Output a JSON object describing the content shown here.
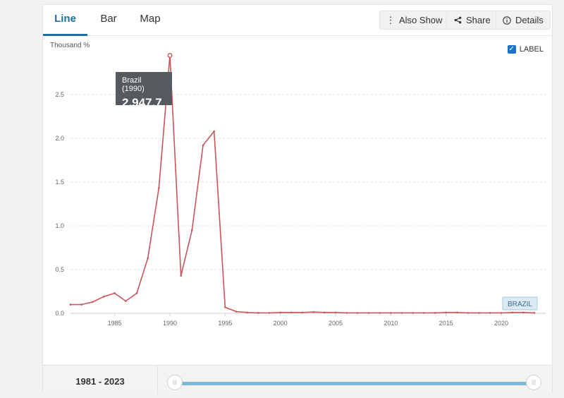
{
  "tabs": [
    "Line",
    "Bar",
    "Map"
  ],
  "buttons": {
    "also_show": "Also Show",
    "share": "Share",
    "details": "Details"
  },
  "label_toggle": {
    "text": "LABEL",
    "checked": true
  },
  "tooltip": {
    "title": "Brazil (1990)",
    "value": "2,947.7"
  },
  "range": {
    "start": "1981",
    "separator": " - ",
    "end": "2023"
  },
  "colors": {
    "series": "#c9545c",
    "accent": "#1f6ea0",
    "slider": "#7ab9dd"
  },
  "chart_data": {
    "type": "line",
    "ylabel": "Thousand %",
    "ylim": [
      0,
      3.0
    ],
    "yticks": [
      "0.0",
      "0.5",
      "1.0",
      "1.5",
      "2.0",
      "2.5"
    ],
    "xticks": [
      "1985",
      "1990",
      "1995",
      "2000",
      "2005",
      "2010",
      "2015",
      "2020"
    ],
    "xlim": [
      1981,
      2023
    ],
    "grid": true,
    "series": [
      {
        "name": "BRAZIL",
        "x": [
          1981,
          1982,
          1983,
          1984,
          1985,
          1986,
          1987,
          1988,
          1989,
          1990,
          1991,
          1992,
          1993,
          1994,
          1995,
          1996,
          1997,
          1998,
          1999,
          2000,
          2001,
          2002,
          2003,
          2004,
          2005,
          2006,
          2007,
          2008,
          2009,
          2010,
          2011,
          2012,
          2013,
          2014,
          2015,
          2016,
          2017,
          2018,
          2019,
          2020,
          2021,
          2022,
          2023
        ],
        "values": [
          0.1,
          0.1,
          0.13,
          0.19,
          0.23,
          0.14,
          0.23,
          0.63,
          1.43,
          2.9477,
          0.43,
          0.95,
          1.92,
          2.08,
          0.07,
          0.02,
          0.01,
          0.005,
          0.005,
          0.01,
          0.01,
          0.01,
          0.015,
          0.01,
          0.01,
          0.005,
          0.005,
          0.005,
          0.005,
          0.005,
          0.005,
          0.005,
          0.005,
          0.005,
          0.01,
          0.01,
          0.005,
          0.005,
          0.005,
          0.005,
          0.01,
          0.01,
          0.005
        ]
      }
    ]
  }
}
